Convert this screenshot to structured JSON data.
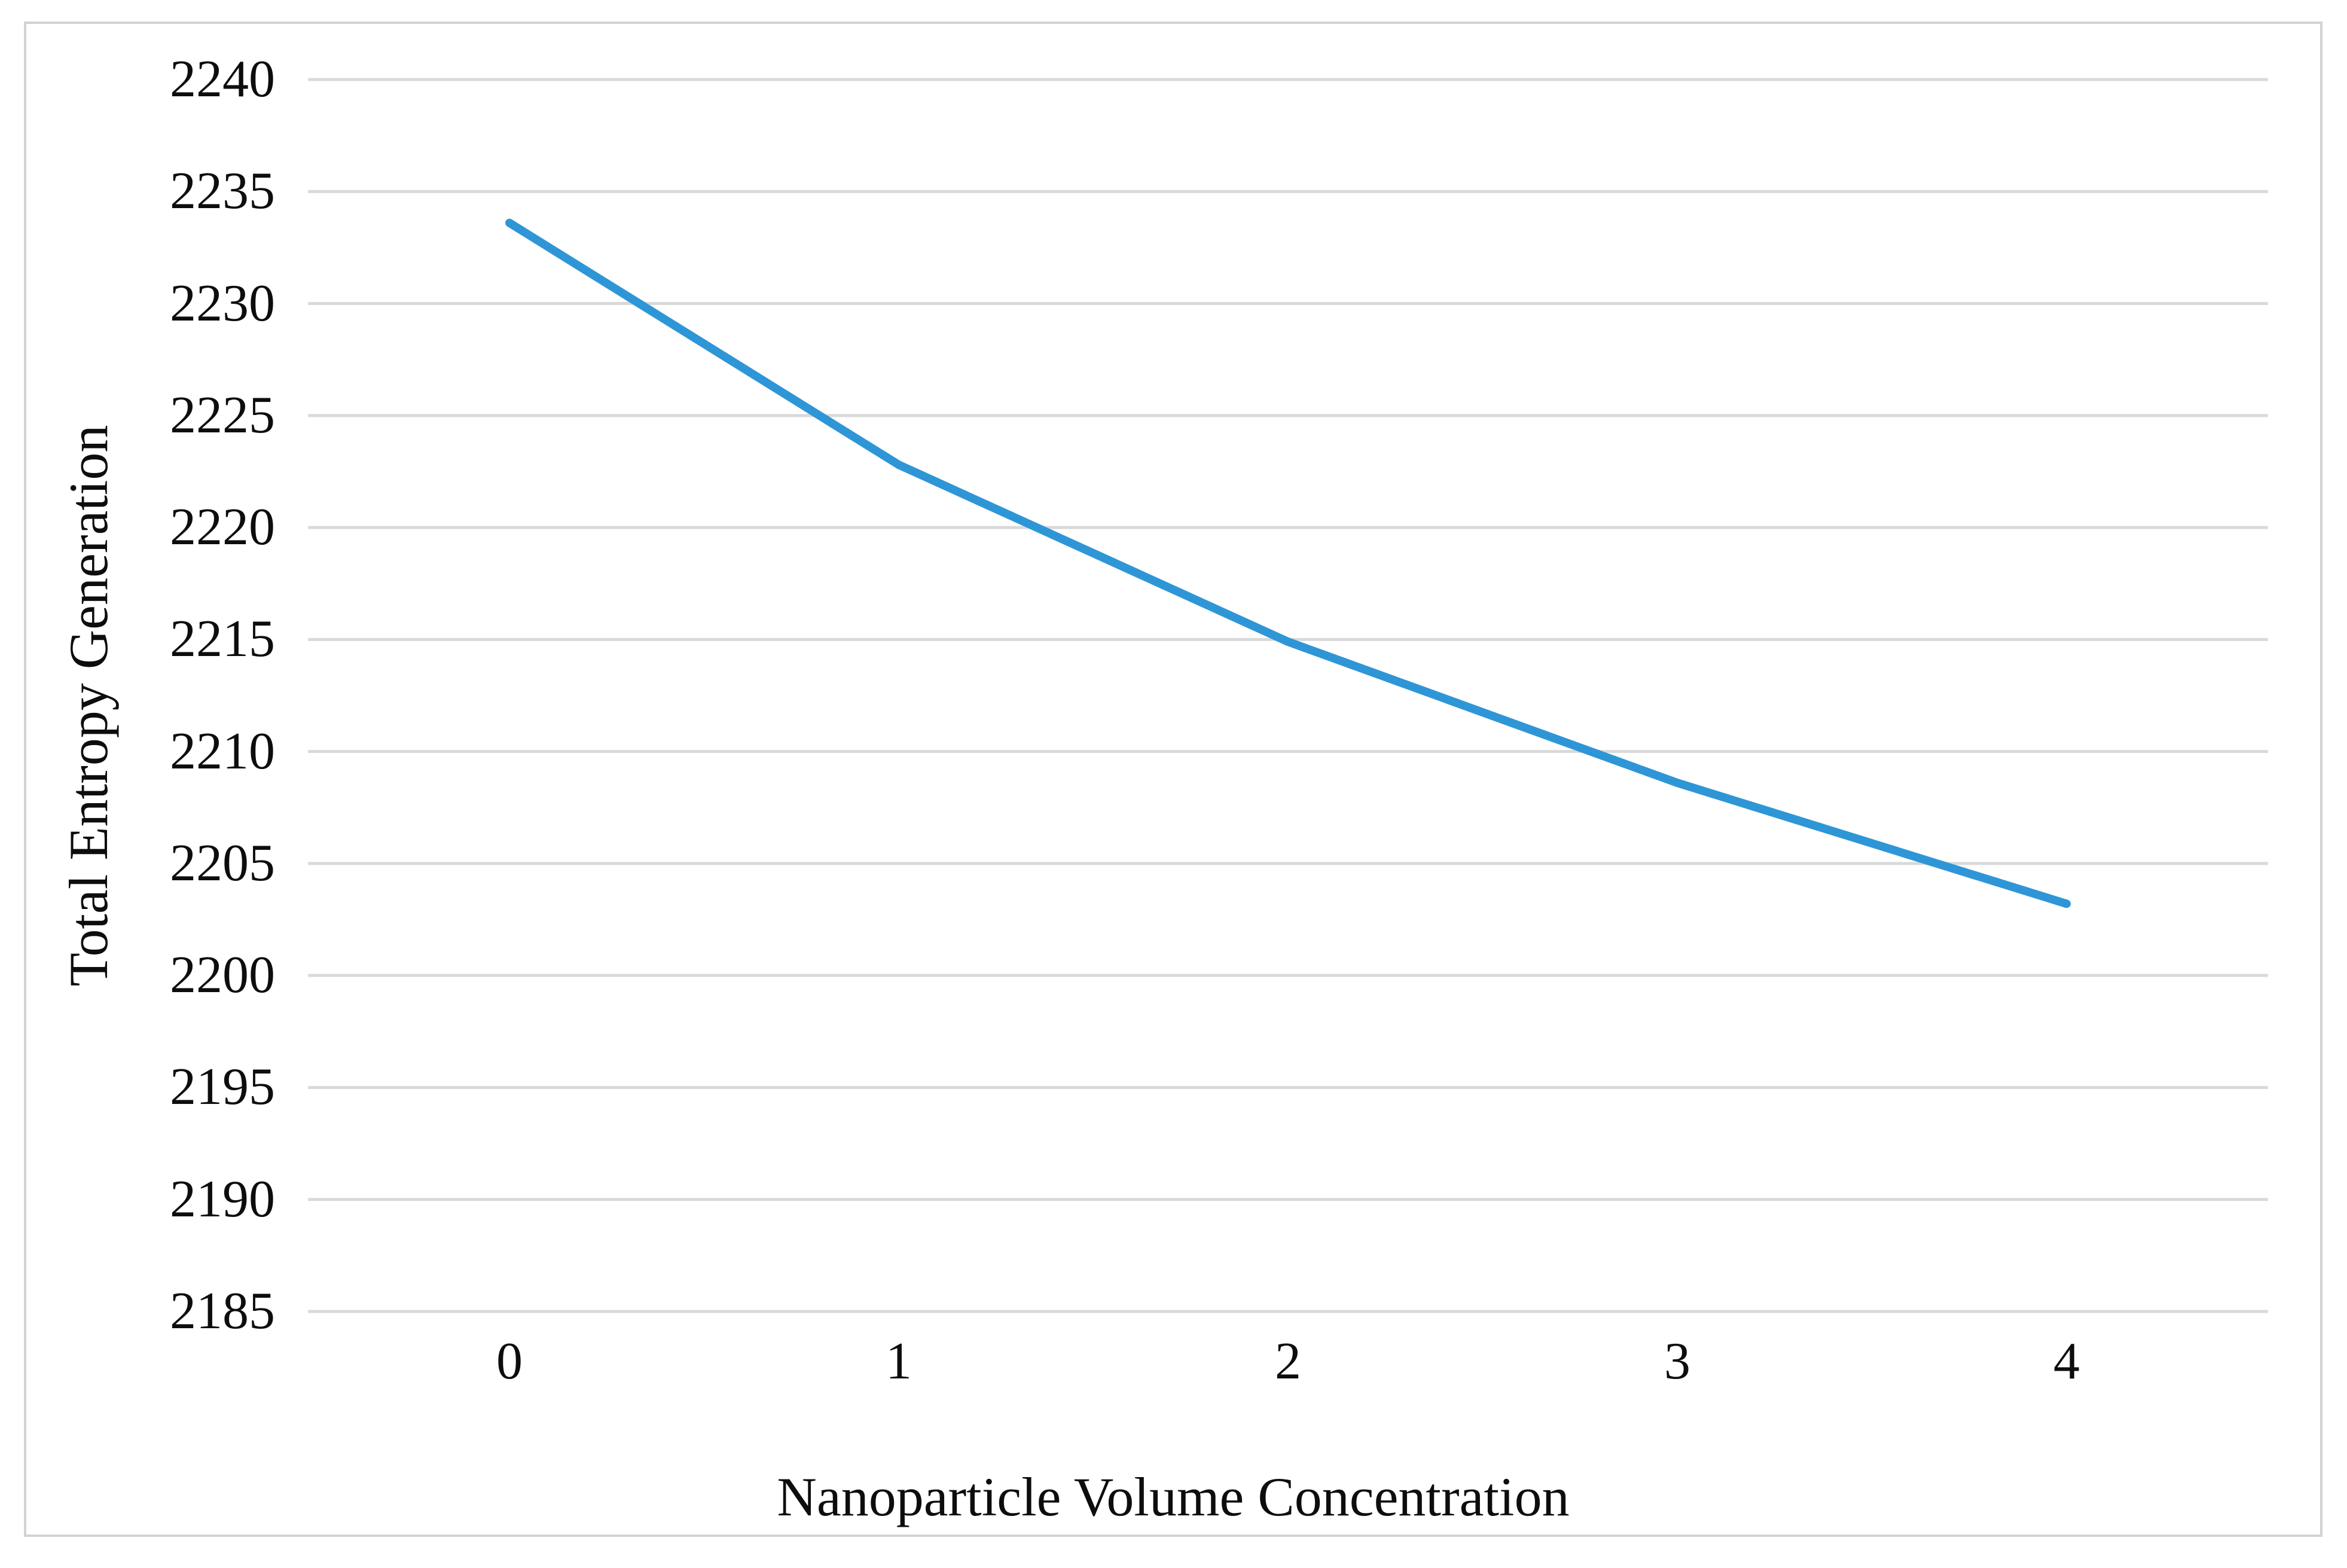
{
  "figure": {
    "background_color": "#FFFFFF",
    "border_color": "#D2D2D2"
  },
  "chart_data": {
    "type": "line",
    "title": "",
    "xlabel": "Nanoparticle Volume Concentration",
    "ylabel": "Total Entropy Generation",
    "x": [
      0,
      1,
      2,
      3,
      4
    ],
    "series": [
      {
        "name": "Total Entropy Generation",
        "values": [
          2233.6,
          2222.8,
          2214.9,
          2208.6,
          2203.2
        ]
      }
    ],
    "xticks": [
      "0",
      "1",
      "2",
      "3",
      "4"
    ],
    "yticks": [
      2185,
      2190,
      2195,
      2200,
      2205,
      2210,
      2215,
      2220,
      2225,
      2230,
      2235,
      2240
    ],
    "ylim": [
      2185,
      2240
    ],
    "xlim_padding_categories": 0.5,
    "grid": "horizontal",
    "legend": "none",
    "line_color": "#2E96D6",
    "line_width": 14,
    "gridline_color": "#D9D9D9",
    "text_color": "#0D0D0D"
  }
}
